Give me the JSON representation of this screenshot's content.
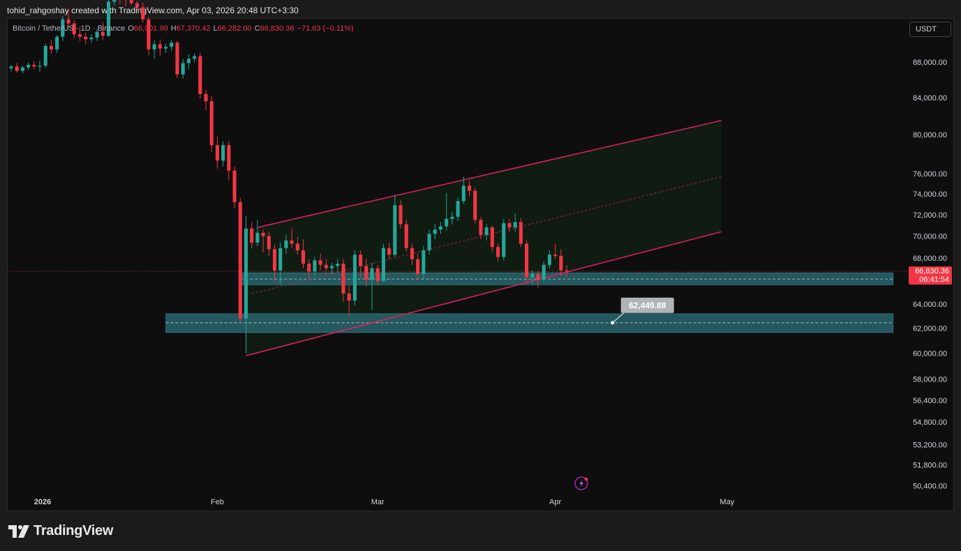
{
  "header": {
    "attribution": "tohid_rahgoshay created with TradingView.com, Apr 03, 2026 20:48 UTC+3:30"
  },
  "legend": {
    "symbol": "Bitcoin / TetherUS · 1D · Binance",
    "o_label": "O",
    "o_value": "66,901.99",
    "h_label": "H",
    "h_value": "67,370.42",
    "l_label": "L",
    "l_value": "66,282.00",
    "c_label": "C",
    "c_value": "66,830.36",
    "change": "−71.63 (−0.11%)"
  },
  "toolbar": {
    "currency": "USDT"
  },
  "brand": {
    "name": "TradingView",
    "logo_icon": "tradingview-logo-icon"
  },
  "colors": {
    "up": "#26a69a",
    "down": "#f23645",
    "channel": "#e91e63",
    "zone": "#2a6b74",
    "background": "#0e0e0e",
    "grid_text": "#d1d4dc"
  },
  "chart_data": {
    "type": "candlestick",
    "symbol": "BTC/USDT",
    "interval": "1D",
    "exchange": "Binance",
    "y_scale": "log",
    "ylim": [
      50000,
      93000
    ],
    "y_ticks": [
      "88,000.00",
      "84,000.00",
      "80,000.00",
      "76,000.00",
      "74,000.00",
      "72,000.00",
      "70,000.00",
      "68,000.00",
      "64,000.00",
      "62,000.00",
      "60,000.00",
      "58,000.00",
      "56,400.00",
      "54,800.00",
      "53,200.00",
      "51,800.00",
      "50,400.00"
    ],
    "y_tick_values": [
      88000,
      84000,
      80000,
      76000,
      74000,
      72000,
      70000,
      68000,
      64000,
      62000,
      60000,
      58000,
      56400,
      54800,
      53200,
      51800,
      50400
    ],
    "x_labels": [
      "2026",
      "Feb",
      "Mar",
      "Apr",
      "May"
    ],
    "x_label_dates": [
      "2026-01-01",
      "2026-02-01",
      "2026-03-01",
      "2026-04-01",
      "2026-05-01"
    ],
    "x_start": "2025-12-27",
    "x_end": "2026-05-31",
    "last_price_label": "66,830.36",
    "countdown_label": "06:41:54",
    "last_price": 66830.36,
    "candles": [
      {
        "d": "2025-12-27",
        "o": 87300,
        "h": 87700,
        "l": 86900,
        "c": 87500
      },
      {
        "d": "2025-12-28",
        "o": 87500,
        "h": 87900,
        "l": 86800,
        "c": 87000
      },
      {
        "d": "2025-12-29",
        "o": 87000,
        "h": 87600,
        "l": 86700,
        "c": 87400
      },
      {
        "d": "2025-12-30",
        "o": 87400,
        "h": 88000,
        "l": 87100,
        "c": 87700
      },
      {
        "d": "2025-12-31",
        "o": 87700,
        "h": 88100,
        "l": 87200,
        "c": 87500
      },
      {
        "d": "2026-01-01",
        "o": 87500,
        "h": 88200,
        "l": 86900,
        "c": 87600
      },
      {
        "d": "2026-01-02",
        "o": 87600,
        "h": 90200,
        "l": 87400,
        "c": 89900
      },
      {
        "d": "2026-01-03",
        "o": 89900,
        "h": 90600,
        "l": 89000,
        "c": 89500
      },
      {
        "d": "2026-01-04",
        "o": 89500,
        "h": 91200,
        "l": 89100,
        "c": 91000
      },
      {
        "d": "2026-01-05",
        "o": 91000,
        "h": 93500,
        "l": 90500,
        "c": 93100
      },
      {
        "d": "2026-01-06",
        "o": 93100,
        "h": 94500,
        "l": 92000,
        "c": 92600
      },
      {
        "d": "2026-01-07",
        "o": 92600,
        "h": 93000,
        "l": 90800,
        "c": 91300
      },
      {
        "d": "2026-01-08",
        "o": 91300,
        "h": 92200,
        "l": 90500,
        "c": 91000
      },
      {
        "d": "2026-01-09",
        "o": 91000,
        "h": 91500,
        "l": 90100,
        "c": 90700
      },
      {
        "d": "2026-01-10",
        "o": 90700,
        "h": 91300,
        "l": 90300,
        "c": 90900
      },
      {
        "d": "2026-01-11",
        "o": 90900,
        "h": 91900,
        "l": 90500,
        "c": 91600
      },
      {
        "d": "2026-01-12",
        "o": 91600,
        "h": 92800,
        "l": 90600,
        "c": 91100
      },
      {
        "d": "2026-01-13",
        "o": 91100,
        "h": 95800,
        "l": 91000,
        "c": 95300
      },
      {
        "d": "2026-01-14",
        "o": 95300,
        "h": 97800,
        "l": 94800,
        "c": 96900
      },
      {
        "d": "2026-01-15",
        "o": 96900,
        "h": 97500,
        "l": 95000,
        "c": 95600
      },
      {
        "d": "2026-01-16",
        "o": 95600,
        "h": 96100,
        "l": 94700,
        "c": 95500
      },
      {
        "d": "2026-01-17",
        "o": 95500,
        "h": 95900,
        "l": 94900,
        "c": 95100
      },
      {
        "d": "2026-01-18",
        "o": 95100,
        "h": 95400,
        "l": 94300,
        "c": 94600
      },
      {
        "d": "2026-01-19",
        "o": 94600,
        "h": 95200,
        "l": 92700,
        "c": 93100
      },
      {
        "d": "2026-01-20",
        "o": 93100,
        "h": 93400,
        "l": 88800,
        "c": 89500
      },
      {
        "d": "2026-01-21",
        "o": 89500,
        "h": 90600,
        "l": 88400,
        "c": 90100
      },
      {
        "d": "2026-01-22",
        "o": 90100,
        "h": 90700,
        "l": 88700,
        "c": 89600
      },
      {
        "d": "2026-01-23",
        "o": 89600,
        "h": 90200,
        "l": 89100,
        "c": 89800
      },
      {
        "d": "2026-01-24",
        "o": 89800,
        "h": 90600,
        "l": 89300,
        "c": 90300
      },
      {
        "d": "2026-01-25",
        "o": 90300,
        "h": 90500,
        "l": 86200,
        "c": 86600
      },
      {
        "d": "2026-01-26",
        "o": 86600,
        "h": 88400,
        "l": 86100,
        "c": 87900
      },
      {
        "d": "2026-01-27",
        "o": 87900,
        "h": 88900,
        "l": 87200,
        "c": 88400
      },
      {
        "d": "2026-01-28",
        "o": 88400,
        "h": 89000,
        "l": 88000,
        "c": 88700
      },
      {
        "d": "2026-01-29",
        "o": 88700,
        "h": 89100,
        "l": 83900,
        "c": 84400
      },
      {
        "d": "2026-01-30",
        "o": 84400,
        "h": 84900,
        "l": 82600,
        "c": 83600
      },
      {
        "d": "2026-01-31",
        "o": 83600,
        "h": 84200,
        "l": 78200,
        "c": 78900
      },
      {
        "d": "2026-02-01",
        "o": 78900,
        "h": 79800,
        "l": 76500,
        "c": 77300
      },
      {
        "d": "2026-02-02",
        "o": 77300,
        "h": 79300,
        "l": 76700,
        "c": 78900
      },
      {
        "d": "2026-02-03",
        "o": 78900,
        "h": 79300,
        "l": 75300,
        "c": 76300
      },
      {
        "d": "2026-02-04",
        "o": 76300,
        "h": 76700,
        "l": 72600,
        "c": 73200
      },
      {
        "d": "2026-02-05",
        "o": 73200,
        "h": 73600,
        "l": 62400,
        "c": 62800
      },
      {
        "d": "2026-02-06",
        "o": 62800,
        "h": 71900,
        "l": 60000,
        "c": 70700
      },
      {
        "d": "2026-02-07",
        "o": 70700,
        "h": 71300,
        "l": 68900,
        "c": 69400
      },
      {
        "d": "2026-02-08",
        "o": 69400,
        "h": 71500,
        "l": 69100,
        "c": 70300
      },
      {
        "d": "2026-02-09",
        "o": 70300,
        "h": 70600,
        "l": 68500,
        "c": 70000
      },
      {
        "d": "2026-02-10",
        "o": 70000,
        "h": 70400,
        "l": 68200,
        "c": 68800
      },
      {
        "d": "2026-02-11",
        "o": 68800,
        "h": 69200,
        "l": 66000,
        "c": 66900
      },
      {
        "d": "2026-02-12",
        "o": 66900,
        "h": 69400,
        "l": 65700,
        "c": 68900
      },
      {
        "d": "2026-02-13",
        "o": 68900,
        "h": 70100,
        "l": 68400,
        "c": 69600
      },
      {
        "d": "2026-02-14",
        "o": 69600,
        "h": 70700,
        "l": 68900,
        "c": 69300
      },
      {
        "d": "2026-02-15",
        "o": 69300,
        "h": 69900,
        "l": 68300,
        "c": 68700
      },
      {
        "d": "2026-02-16",
        "o": 68700,
        "h": 69700,
        "l": 67100,
        "c": 67500
      },
      {
        "d": "2026-02-17",
        "o": 67500,
        "h": 67900,
        "l": 66200,
        "c": 66800
      },
      {
        "d": "2026-02-18",
        "o": 66800,
        "h": 68100,
        "l": 66400,
        "c": 67800
      },
      {
        "d": "2026-02-19",
        "o": 67800,
        "h": 68400,
        "l": 66900,
        "c": 67400
      },
      {
        "d": "2026-02-20",
        "o": 67400,
        "h": 67900,
        "l": 66500,
        "c": 67100
      },
      {
        "d": "2026-02-21",
        "o": 67100,
        "h": 67600,
        "l": 66600,
        "c": 67300
      },
      {
        "d": "2026-02-22",
        "o": 67300,
        "h": 67900,
        "l": 66800,
        "c": 67500
      },
      {
        "d": "2026-02-23",
        "o": 67500,
        "h": 67900,
        "l": 64200,
        "c": 64900
      },
      {
        "d": "2026-02-24",
        "o": 64900,
        "h": 65600,
        "l": 63000,
        "c": 64300
      },
      {
        "d": "2026-02-25",
        "o": 64300,
        "h": 68700,
        "l": 63900,
        "c": 68300
      },
      {
        "d": "2026-02-26",
        "o": 68300,
        "h": 68700,
        "l": 66300,
        "c": 67300
      },
      {
        "d": "2026-02-27",
        "o": 67300,
        "h": 67900,
        "l": 65500,
        "c": 66100
      },
      {
        "d": "2026-02-28",
        "o": 66100,
        "h": 67600,
        "l": 63500,
        "c": 67100
      },
      {
        "d": "2026-03-01",
        "o": 67100,
        "h": 67400,
        "l": 65600,
        "c": 66000
      },
      {
        "d": "2026-03-02",
        "o": 66000,
        "h": 69300,
        "l": 65900,
        "c": 68900
      },
      {
        "d": "2026-03-03",
        "o": 68900,
        "h": 69400,
        "l": 67900,
        "c": 68300
      },
      {
        "d": "2026-03-04",
        "o": 68300,
        "h": 73900,
        "l": 68100,
        "c": 72900
      },
      {
        "d": "2026-03-05",
        "o": 72900,
        "h": 73400,
        "l": 70700,
        "c": 71100
      },
      {
        "d": "2026-03-06",
        "o": 71100,
        "h": 71500,
        "l": 68600,
        "c": 68900
      },
      {
        "d": "2026-03-07",
        "o": 68900,
        "h": 69300,
        "l": 67400,
        "c": 67900
      },
      {
        "d": "2026-03-08",
        "o": 67900,
        "h": 68400,
        "l": 66100,
        "c": 66600
      },
      {
        "d": "2026-03-09",
        "o": 66600,
        "h": 69100,
        "l": 66200,
        "c": 68700
      },
      {
        "d": "2026-03-10",
        "o": 68700,
        "h": 70600,
        "l": 68300,
        "c": 70200
      },
      {
        "d": "2026-03-11",
        "o": 70200,
        "h": 71100,
        "l": 69700,
        "c": 70600
      },
      {
        "d": "2026-03-12",
        "o": 70600,
        "h": 71300,
        "l": 70200,
        "c": 70900
      },
      {
        "d": "2026-03-13",
        "o": 70900,
        "h": 74100,
        "l": 70500,
        "c": 71600
      },
      {
        "d": "2026-03-14",
        "o": 71600,
        "h": 72300,
        "l": 71100,
        "c": 71800
      },
      {
        "d": "2026-03-15",
        "o": 71800,
        "h": 73600,
        "l": 71400,
        "c": 73300
      },
      {
        "d": "2026-03-16",
        "o": 73300,
        "h": 75700,
        "l": 73000,
        "c": 74800
      },
      {
        "d": "2026-03-17",
        "o": 74800,
        "h": 75300,
        "l": 73800,
        "c": 74300
      },
      {
        "d": "2026-03-18",
        "o": 74300,
        "h": 74600,
        "l": 71200,
        "c": 71500
      },
      {
        "d": "2026-03-19",
        "o": 71500,
        "h": 71800,
        "l": 69700,
        "c": 70100
      },
      {
        "d": "2026-03-20",
        "o": 70100,
        "h": 71100,
        "l": 69600,
        "c": 70800
      },
      {
        "d": "2026-03-21",
        "o": 70800,
        "h": 71000,
        "l": 68600,
        "c": 69000
      },
      {
        "d": "2026-03-22",
        "o": 69000,
        "h": 69400,
        "l": 67700,
        "c": 68100
      },
      {
        "d": "2026-03-23",
        "o": 68100,
        "h": 71600,
        "l": 67800,
        "c": 71200
      },
      {
        "d": "2026-03-24",
        "o": 71200,
        "h": 71600,
        "l": 70400,
        "c": 70800
      },
      {
        "d": "2026-03-25",
        "o": 70800,
        "h": 72100,
        "l": 70400,
        "c": 71300
      },
      {
        "d": "2026-03-26",
        "o": 71300,
        "h": 71700,
        "l": 69000,
        "c": 69300
      },
      {
        "d": "2026-03-27",
        "o": 69300,
        "h": 69600,
        "l": 65800,
        "c": 66300
      },
      {
        "d": "2026-03-28",
        "o": 66300,
        "h": 66900,
        "l": 65700,
        "c": 66600
      },
      {
        "d": "2026-03-29",
        "o": 66600,
        "h": 66900,
        "l": 65400,
        "c": 66100
      },
      {
        "d": "2026-03-30",
        "o": 66100,
        "h": 67700,
        "l": 65900,
        "c": 67400
      },
      {
        "d": "2026-03-31",
        "o": 67400,
        "h": 68700,
        "l": 67100,
        "c": 68300
      },
      {
        "d": "2026-04-01",
        "o": 68300,
        "h": 69300,
        "l": 67900,
        "c": 68200
      },
      {
        "d": "2026-04-02",
        "o": 68200,
        "h": 68800,
        "l": 66400,
        "c": 66900
      },
      {
        "d": "2026-04-03",
        "o": 66902,
        "h": 67370,
        "l": 66282,
        "c": 66830
      }
    ],
    "drawings": {
      "channel_upper": [
        {
          "d": "2026-02-08",
          "p": 70800
        },
        {
          "d": "2026-04-30",
          "p": 81500
        }
      ],
      "channel_mid": [
        {
          "d": "2026-02-07",
          "p": 64900
        },
        {
          "d": "2026-04-30",
          "p": 75700
        }
      ],
      "channel_lower": [
        {
          "d": "2026-02-06",
          "p": 59800
        },
        {
          "d": "2026-04-30",
          "p": 70400
        }
      ],
      "channel_fill_end": "2026-04-30",
      "zone_upper": {
        "from": "2026-02-05",
        "to": "2026-05-30",
        "top": 66700,
        "bottom": 65650,
        "mid": 66150
      },
      "zone_lower": {
        "from": "2026-01-23",
        "to": "2026-05-30",
        "top": 63200,
        "bottom": 61650,
        "mid": 62450
      },
      "callout": {
        "label": "62,449.88",
        "value": 62449.88,
        "anchor_date": "2026-04-11"
      }
    }
  }
}
